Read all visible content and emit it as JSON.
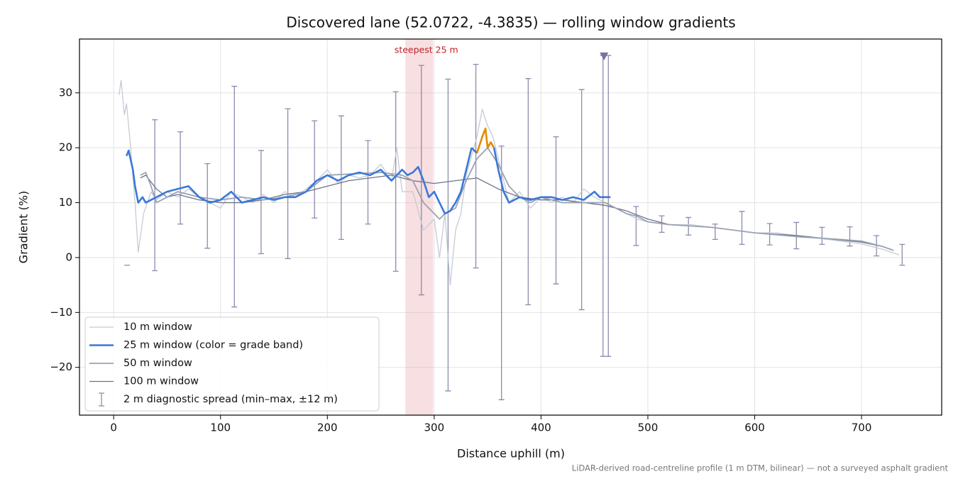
{
  "chart_data": {
    "type": "line",
    "title": "Discovered lane (52.0722, -4.3835) — rolling window gradients",
    "x_label": "Distance uphill (m)",
    "y_label": "Gradient (%)",
    "footnote": "LiDAR-derived road-centreline profile (1 m DTM, bilinear) — not a surveyed asphalt gradient",
    "xlim": [
      -32,
      775
    ],
    "ylim": [
      -28.7,
      39.8
    ],
    "xticks": [
      0,
      100,
      200,
      300,
      400,
      500,
      600,
      700
    ],
    "yticks": [
      {
        "value": -20,
        "label": "−20"
      },
      {
        "value": -10,
        "label": "−10"
      },
      0,
      10,
      20,
      30
    ],
    "grid": true,
    "legend": "lower left",
    "span": {
      "x": [
        273,
        299
      ],
      "label": "steepest 25 m",
      "color": "#e8a4ac",
      "label_color": "#c0202a"
    },
    "marker": {
      "x": 459,
      "y": 36.7,
      "color": "#7b6fa0"
    },
    "series": [
      {
        "name": "10 m window",
        "color": "#c5cbd4",
        "width": 1.3,
        "x": [
          5,
          7,
          10,
          12,
          15,
          20,
          23,
          28,
          35,
          40,
          50,
          60,
          70,
          80,
          90,
          100,
          110,
          120,
          130,
          140,
          150,
          160,
          170,
          180,
          190,
          200,
          210,
          220,
          230,
          240,
          250,
          260,
          265,
          270,
          280,
          290,
          300,
          305,
          310,
          315,
          320,
          325,
          330,
          340,
          345,
          350,
          355,
          360,
          370,
          380,
          390,
          400,
          410,
          420,
          430,
          440,
          450,
          460,
          470,
          480,
          490,
          500,
          520,
          540,
          560,
          580,
          600,
          620,
          640,
          660,
          680,
          700,
          720,
          735
        ],
        "values": [
          29.6,
          32.3,
          26,
          28,
          22,
          10,
          1,
          8,
          12,
          10.5,
          12,
          11,
          12.5,
          11,
          10,
          9,
          12,
          11,
          10,
          11.5,
          10,
          12,
          11,
          12.5,
          14,
          16,
          13.5,
          15,
          14.5,
          15,
          17,
          14,
          20,
          12,
          12,
          5,
          7,
          0,
          8,
          -5,
          5,
          8,
          15,
          22,
          27,
          24,
          22,
          18,
          10,
          12,
          9,
          11,
          10,
          11,
          10,
          12.5,
          11,
          10,
          9,
          8,
          7,
          6.5,
          6,
          6,
          5.5,
          5,
          4.5,
          4.5,
          4,
          3.5,
          3,
          2.5,
          1.5,
          0.5
        ]
      },
      {
        "name": "25 m window (color = grade band)",
        "color": "#3b78d8",
        "width": 2.6,
        "bands": [
          {
            "from": 340,
            "to": 356,
            "color": "#e08c00"
          }
        ],
        "x": [
          12,
          14,
          18,
          20,
          23,
          27,
          30,
          40,
          50,
          60,
          70,
          80,
          90,
          100,
          110,
          120,
          130,
          140,
          150,
          160,
          170,
          180,
          190,
          200,
          210,
          220,
          230,
          240,
          250,
          260,
          270,
          275,
          280,
          285,
          290,
          295,
          300,
          305,
          310,
          315,
          320,
          325,
          330,
          335,
          340,
          345,
          348,
          350,
          353,
          356,
          360,
          365,
          370,
          380,
          390,
          400,
          410,
          420,
          430,
          440,
          450,
          455,
          465
        ],
        "values": [
          18.5,
          19.5,
          16,
          13,
          10,
          11,
          10,
          11,
          12,
          12.5,
          13,
          11,
          10,
          10.5,
          12,
          10,
          10.5,
          11,
          10.5,
          11,
          11,
          12,
          14,
          15,
          14,
          15,
          15.5,
          15,
          16,
          14,
          16,
          15,
          15.5,
          16.5,
          14,
          11,
          12,
          10,
          8,
          8.5,
          10,
          12,
          16,
          20,
          19,
          22,
          23.5,
          20,
          21,
          20,
          16,
          12,
          10,
          11,
          10.5,
          11,
          11,
          10.5,
          11,
          10.5,
          12,
          11,
          11
        ]
      },
      {
        "name": "50 m window",
        "color": "#9aa3b3",
        "width": 1.8,
        "x": [
          25,
          30,
          35,
          40,
          60,
          80,
          100,
          120,
          140,
          160,
          180,
          200,
          250,
          270,
          280,
          290,
          300,
          305,
          310,
          320,
          330,
          340,
          350,
          360,
          370,
          380,
          390,
          400,
          420,
          440,
          460,
          470,
          480,
          490,
          500,
          520,
          560,
          600,
          640,
          680,
          700,
          720,
          730
        ],
        "values": [
          15,
          15.5,
          13,
          10,
          12,
          11,
          10.5,
          11,
          10.5,
          11,
          12,
          15,
          15.5,
          15,
          14,
          10,
          8,
          7,
          8,
          9,
          14,
          18,
          20,
          17,
          13,
          11,
          10,
          11,
          10,
          10,
          10,
          9,
          8,
          7.5,
          6.5,
          6,
          5.5,
          4.5,
          3.8,
          3.3,
          3,
          2,
          1.3
        ]
      },
      {
        "name": "100 m window",
        "color": "#6b7488",
        "width": 1.3,
        "x": [
          25,
          30,
          40,
          50,
          60,
          70,
          80,
          100,
          120,
          140,
          160,
          180,
          200,
          220,
          240,
          260,
          280,
          300,
          320,
          340,
          360,
          380,
          400,
          420,
          440,
          460,
          480,
          500,
          520,
          560,
          600,
          640,
          680,
          700,
          720
        ],
        "values": [
          14.5,
          15,
          12.5,
          11,
          11.5,
          11,
          10.5,
          10,
          10,
          10.5,
          11.5,
          12,
          13,
          14,
          14.5,
          15,
          14,
          13.5,
          14,
          14.5,
          12.5,
          11,
          10.5,
          10.5,
          10,
          9.5,
          8.5,
          7,
          6,
          5.5,
          4.5,
          4,
          3.2,
          2.8,
          2
        ]
      }
    ],
    "errorbars": {
      "name": "2 m diagnostic spread (min–max, ±12 m)",
      "color": "#8f8aad",
      "x": [
        12.6,
        38.5,
        62.4,
        87.7,
        113,
        138,
        163,
        188,
        213,
        238,
        264,
        288,
        313,
        339,
        363,
        388,
        414,
        438,
        458,
        463,
        489,
        513,
        538,
        563,
        588,
        614,
        639,
        663,
        689,
        714,
        738
      ],
      "low": [
        -1.4,
        -2.4,
        6.1,
        1.7,
        -9,
        0.7,
        -0.2,
        7.2,
        3.3,
        6.1,
        -2.5,
        -6.8,
        -24.3,
        -1.9,
        -25.9,
        -8.6,
        -4.8,
        -9.5,
        -18,
        -18,
        2.2,
        4.6,
        4.1,
        3.3,
        2.4,
        2.3,
        1.6,
        2.4,
        2.1,
        0.3,
        -1.4
      ],
      "high": [
        -1.4,
        25.1,
        22.9,
        17.1,
        31.2,
        19.5,
        27.1,
        24.9,
        25.8,
        21.3,
        30.2,
        35,
        32.5,
        35.2,
        20.3,
        32.6,
        22,
        30.6,
        36.8,
        36.8,
        9.3,
        7.6,
        7.3,
        6.1,
        8.4,
        6.2,
        6.4,
        5.5,
        5.6,
        4,
        2.4
      ]
    }
  }
}
